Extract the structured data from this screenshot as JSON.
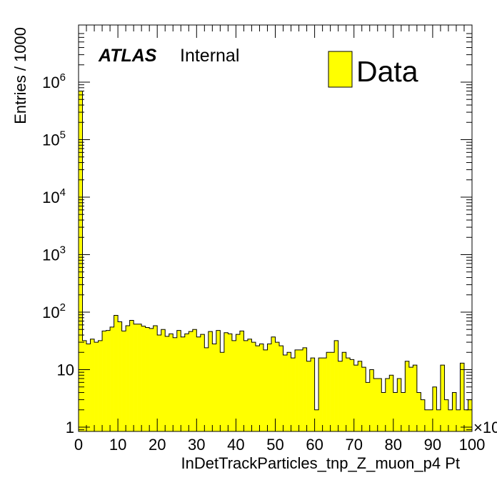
{
  "chart_data": {
    "type": "bar",
    "histogram": true,
    "title": "",
    "xlabel": "InDetTrackParticles_tnp_Z_muon_p4 Pt",
    "ylabel": "Entries / 1000",
    "x_multiplier_label": "×10",
    "xlim": [
      0,
      100
    ],
    "ylim": [
      0.9,
      1000000
    ],
    "yscale": "log",
    "bin_width": 1,
    "grid": false,
    "legend": {
      "position": "top-right",
      "entries": [
        {
          "label": "Data",
          "color": "#ffff00"
        }
      ]
    },
    "annotation": {
      "experiment": "ATLAS",
      "status": "Internal"
    },
    "x_ticks": [
      0,
      10,
      20,
      30,
      40,
      50,
      60,
      70,
      80,
      90,
      100
    ],
    "y_ticks": [
      {
        "value": 1,
        "label": "1",
        "exp": ""
      },
      {
        "value": 10,
        "label": "10",
        "exp": ""
      },
      {
        "value": 100,
        "label": "10",
        "exp": "2"
      },
      {
        "value": 1000,
        "label": "10",
        "exp": "3"
      },
      {
        "value": 10000,
        "label": "10",
        "exp": "4"
      },
      {
        "value": 100000,
        "label": "10",
        "exp": "5"
      },
      {
        "value": 1000000,
        "label": "10",
        "exp": "6"
      }
    ],
    "series": [
      {
        "name": "Data",
        "color": "#ffff00",
        "values": [
          700000,
          32,
          28,
          34,
          30,
          32,
          47,
          48,
          55,
          88,
          68,
          47,
          58,
          72,
          62,
          62,
          57,
          54,
          52,
          58,
          40,
          50,
          38,
          42,
          36,
          48,
          37,
          42,
          46,
          50,
          37,
          41,
          24,
          46,
          28,
          48,
          20,
          44,
          42,
          32,
          41,
          47,
          32,
          34,
          30,
          26,
          28,
          22,
          28,
          37,
          30,
          26,
          18,
          20,
          16,
          22,
          22,
          24,
          14,
          16,
          2,
          16,
          16,
          20,
          20,
          32,
          14,
          20,
          16,
          15,
          12,
          14,
          11,
          6,
          10,
          7,
          7,
          4,
          7,
          8,
          4,
          7,
          4,
          14,
          11,
          12,
          4,
          3,
          2,
          2,
          5,
          2,
          12,
          3,
          2,
          4,
          2,
          13,
          2,
          3
        ]
      }
    ]
  }
}
